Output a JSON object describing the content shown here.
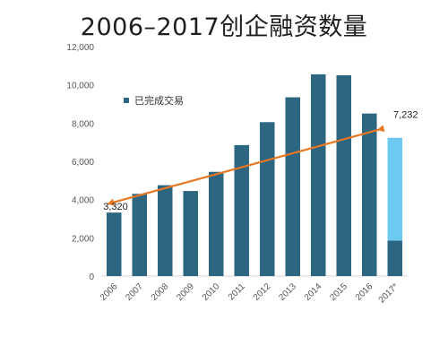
{
  "title": "2006–2017创企融资数量",
  "chart_data": {
    "type": "bar",
    "categories": [
      "2006",
      "2007",
      "2008",
      "2009",
      "2010",
      "2011",
      "2012",
      "2013",
      "2014",
      "2015",
      "2016",
      "2017*"
    ],
    "series": [
      {
        "name": "已完成交易",
        "color": "#2d6680",
        "values": [
          3320,
          4300,
          4750,
          4450,
          5450,
          6850,
          8050,
          9350,
          10550,
          10500,
          8500,
          1850
        ]
      },
      {
        "color": "#6cc9f1",
        "values": [
          0,
          0,
          0,
          0,
          0,
          0,
          0,
          0,
          0,
          0,
          0,
          5382
        ]
      }
    ],
    "stacked": true,
    "ylim": [
      0,
      12000
    ],
    "yticks": [
      "0",
      "2,000",
      "4,000",
      "6,000",
      "8,000",
      "10,000",
      "12,000"
    ],
    "ytick_values": [
      0,
      2000,
      4000,
      6000,
      8000,
      10000,
      12000
    ],
    "trend_line": {
      "color": "#e87722",
      "from": {
        "x": "2006",
        "y": 3320
      },
      "to": {
        "x": "2017*",
        "y": 7232
      }
    },
    "annotations": [
      {
        "text": "3,320",
        "x": "2006",
        "y": 3320
      },
      {
        "text": "7,232",
        "x": "2017*",
        "y": 7232
      }
    ],
    "legend_position": "top-left",
    "grid": false
  }
}
